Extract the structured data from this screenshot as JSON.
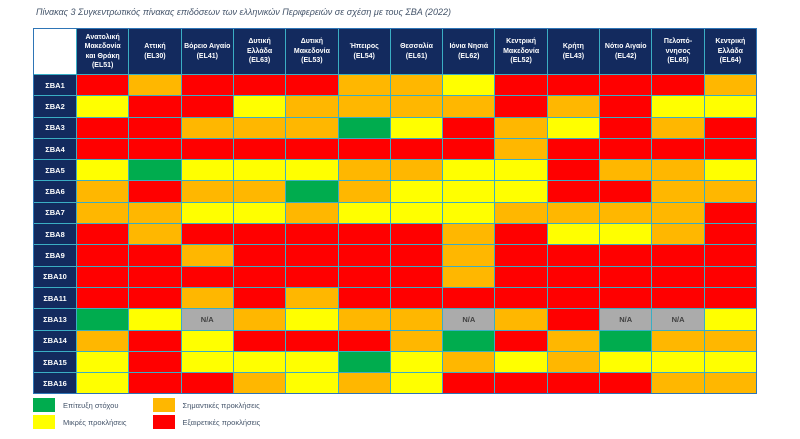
{
  "title": "Πίνακας 3 Συγκεντρωτικός πίνακας επιδόσεων των ελληνικών Περιφερειών σε σχέση με τους ΣΒΑ (2022)",
  "colors": {
    "header_bg": "#132A5E",
    "border": "#3AAEC4",
    "outer_border": "#2E75B6",
    "title_text": "#44546A",
    "legend_text": "#44546A"
  },
  "chart_data": {
    "type": "heatmap",
    "title": "Πίνακας 3 Συγκεντρωτικός πίνακας επιδόσεων των ελληνικών Περιφερειών σε σχέση με τους ΣΒΑ (2022)",
    "na_text": "N/A",
    "legend_position": "bottom-left",
    "value_scale": {
      "G": "Επίτευξη στόχου",
      "Y": "Μικρές προκλήσεις",
      "O": "Σημαντικές προκλήσεις",
      "R": "Εξαιρετικές προκλήσεις",
      "N": "N/A"
    },
    "cell_colors": {
      "G": "#00AC4E",
      "Y": "#FFFF00",
      "O": "#FFB700",
      "R": "#FF0000",
      "N": "#ABABAB"
    },
    "columns": [
      {
        "id": "el51",
        "name": "Ανατολική Μακεδονία και Θράκη",
        "code": "(EL51)"
      },
      {
        "id": "el30",
        "name": "Αττική",
        "code": "(EL30)"
      },
      {
        "id": "el41",
        "name": "Βόρειο Αιγαίο",
        "code": "(EL41)"
      },
      {
        "id": "el63",
        "name": "Δυτική Ελλάδα",
        "code": "(EL63)"
      },
      {
        "id": "el53",
        "name": "Δυτική Μακεδονία",
        "code": "(EL53)"
      },
      {
        "id": "el54",
        "name": "Ήπειρος",
        "code": "(EL54)"
      },
      {
        "id": "el61",
        "name": "Θεσσαλία",
        "code": "(EL61)"
      },
      {
        "id": "el62",
        "name": "Ιόνια Νησιά",
        "code": "(EL62)"
      },
      {
        "id": "el52",
        "name": "Κεντρική Μακεδονία",
        "code": "(EL52)"
      },
      {
        "id": "el43",
        "name": "Κρήτη",
        "code": "(EL43)"
      },
      {
        "id": "el42",
        "name": "Νότιο Αιγαίο",
        "code": "(EL42)"
      },
      {
        "id": "el65",
        "name": "Πελοπό­ννησος",
        "code": "(EL65)"
      },
      {
        "id": "el64",
        "name": "Κεντρική Ελλάδα",
        "code": "(EL64)"
      }
    ],
    "rows": [
      {
        "id": "sba1",
        "label": "ΣΒΑ1"
      },
      {
        "id": "sba2",
        "label": "ΣΒΑ2"
      },
      {
        "id": "sba3",
        "label": "ΣΒΑ3"
      },
      {
        "id": "sba4",
        "label": "ΣΒΑ4"
      },
      {
        "id": "sba5",
        "label": "ΣΒΑ5"
      },
      {
        "id": "sba6",
        "label": "ΣΒΑ6"
      },
      {
        "id": "sba7",
        "label": "ΣΒΑ7"
      },
      {
        "id": "sba8",
        "label": "ΣΒΑ8"
      },
      {
        "id": "sba9",
        "label": "ΣΒΑ9"
      },
      {
        "id": "sba10",
        "label": "ΣΒΑ10"
      },
      {
        "id": "sba11",
        "label": "ΣΒΑ11"
      },
      {
        "id": "sba13",
        "label": "ΣΒΑ13"
      },
      {
        "id": "sba14",
        "label": "ΣΒΑ14"
      },
      {
        "id": "sba15",
        "label": "ΣΒΑ15"
      },
      {
        "id": "sba16",
        "label": "ΣΒΑ16"
      }
    ],
    "values": [
      [
        "R",
        "O",
        "R",
        "R",
        "R",
        "O",
        "O",
        "Y",
        "R",
        "R",
        "R",
        "R",
        "O"
      ],
      [
        "Y",
        "R",
        "R",
        "Y",
        "O",
        "O",
        "O",
        "O",
        "R",
        "O",
        "R",
        "Y",
        "Y"
      ],
      [
        "R",
        "R",
        "O",
        "O",
        "O",
        "G",
        "Y",
        "R",
        "O",
        "Y",
        "R",
        "O",
        "R"
      ],
      [
        "R",
        "R",
        "R",
        "R",
        "R",
        "R",
        "R",
        "R",
        "O",
        "R",
        "R",
        "R",
        "R"
      ],
      [
        "Y",
        "G",
        "Y",
        "Y",
        "Y",
        "O",
        "O",
        "Y",
        "Y",
        "R",
        "O",
        "O",
        "Y"
      ],
      [
        "O",
        "R",
        "O",
        "O",
        "G",
        "O",
        "Y",
        "Y",
        "Y",
        "R",
        "R",
        "O",
        "O"
      ],
      [
        "O",
        "O",
        "Y",
        "Y",
        "O",
        "Y",
        "Y",
        "Y",
        "O",
        "O",
        "O",
        "O",
        "R"
      ],
      [
        "R",
        "O",
        "R",
        "R",
        "R",
        "R",
        "R",
        "O",
        "R",
        "Y",
        "Y",
        "O",
        "R"
      ],
      [
        "R",
        "R",
        "O",
        "R",
        "R",
        "R",
        "R",
        "O",
        "R",
        "R",
        "R",
        "R",
        "R"
      ],
      [
        "R",
        "R",
        "R",
        "R",
        "R",
        "R",
        "R",
        "O",
        "R",
        "R",
        "R",
        "R",
        "R"
      ],
      [
        "R",
        "R",
        "O",
        "R",
        "O",
        "R",
        "R",
        "R",
        "R",
        "R",
        "R",
        "R",
        "R"
      ],
      [
        "G",
        "Y",
        "N",
        "O",
        "Y",
        "O",
        "O",
        "N",
        "O",
        "R",
        "N",
        "N",
        "Y"
      ],
      [
        "O",
        "R",
        "Y",
        "R",
        "R",
        "R",
        "O",
        "G",
        "R",
        "O",
        "G",
        "O",
        "O"
      ],
      [
        "Y",
        "R",
        "Y",
        "Y",
        "Y",
        "G",
        "Y",
        "O",
        "Y",
        "O",
        "Y",
        "Y",
        "Y"
      ],
      [
        "Y",
        "R",
        "R",
        "O",
        "Y",
        "O",
        "Y",
        "R",
        "R",
        "R",
        "R",
        "O",
        "O"
      ]
    ]
  },
  "legend": {
    "items": [
      {
        "key": "G",
        "label": "Επίτευξη στόχου"
      },
      {
        "key": "Y",
        "label": "Μικρές προκλήσεις"
      },
      {
        "key": "O",
        "label": "Σημαντικές προκλήσεις"
      },
      {
        "key": "R",
        "label": "Εξαιρετικές προκλήσεις"
      }
    ]
  }
}
